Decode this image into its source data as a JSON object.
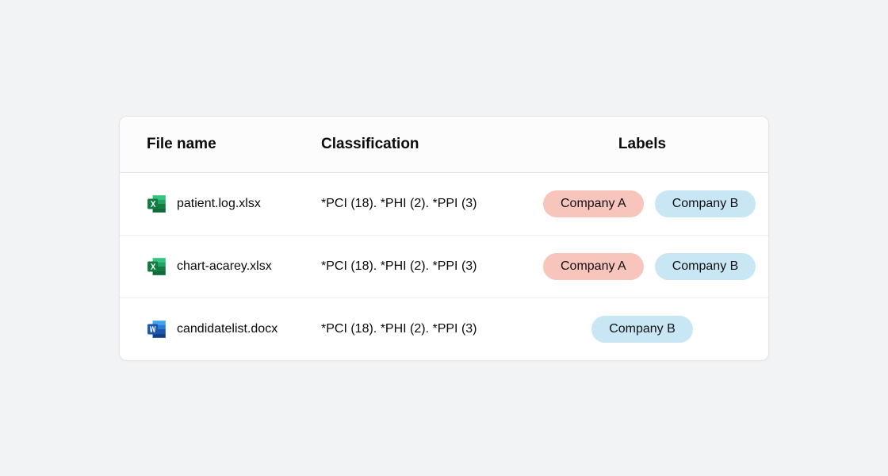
{
  "colors": {
    "page_bg": "#f2f3f4",
    "card_bg": "#ffffff",
    "border": "#e3e4e6",
    "row_border": "#ececed",
    "text": "#0a0a0a",
    "pill_companyA_bg": "#f8c5bd",
    "pill_companyB_bg": "#c9e6f5",
    "excel_dark": "#107c41",
    "excel_mid": "#21a366",
    "excel_light": "#33c481",
    "excel_page": "#ffffff",
    "word_dark": "#1a56b0",
    "word_mid": "#2b7cd3",
    "word_light": "#41a5ee",
    "word_page": "#ffffff"
  },
  "table": {
    "columns": {
      "file": "File name",
      "classification": "Classification",
      "labels": "Labels"
    },
    "rows": [
      {
        "icon": "excel",
        "file": "patient.log.xlsx",
        "classification": "*PCI (18). *PHI (2). *PPI (3)",
        "labels": [
          {
            "text": "Company A",
            "color": "companyA"
          },
          {
            "text": "Company B",
            "color": "companyB"
          }
        ]
      },
      {
        "icon": "excel",
        "file": "chart-acarey.xlsx",
        "classification": "*PCI (18). *PHI (2). *PPI (3)",
        "labels": [
          {
            "text": "Company A",
            "color": "companyA"
          },
          {
            "text": "Company B",
            "color": "companyB"
          }
        ]
      },
      {
        "icon": "word",
        "file": "candidatelist.docx",
        "classification": "*PCI (18). *PHI (2). *PPI (3)",
        "labels": [
          {
            "text": "Company B",
            "color": "companyB"
          }
        ]
      }
    ]
  }
}
